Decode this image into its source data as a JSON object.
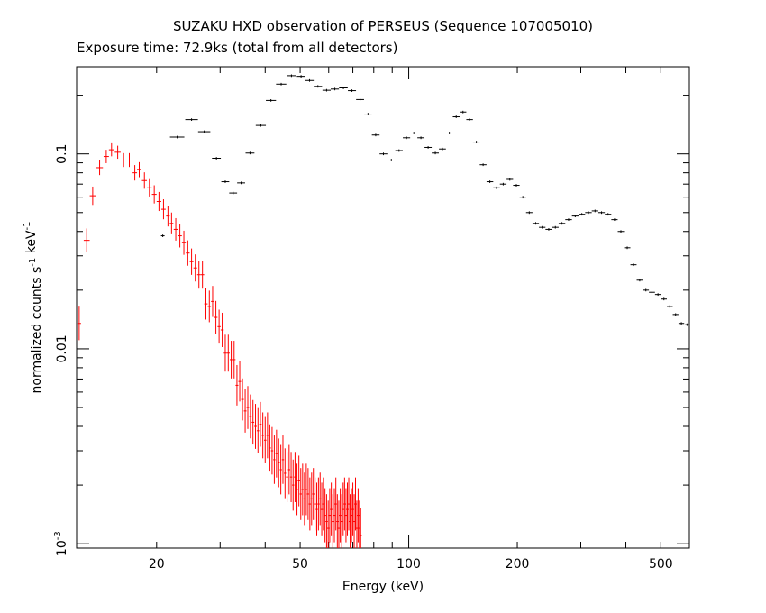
{
  "chart_data": {
    "type": "scatter",
    "title": "SUZAKU HXD observation of PERSEUS (Sequence 107005010)",
    "subtitle": "Exposure time: 72.9ks (total from all detectors)",
    "xlabel": "Energy (keV)",
    "ylabel": "normalized counts s-1 keV-1",
    "xscale": "log",
    "yscale": "log",
    "xlim": [
      12,
      600
    ],
    "ylim": [
      0.00095,
      0.28
    ],
    "x_ticks": [
      {
        "value": 20,
        "label": "20"
      },
      {
        "value": 50,
        "label": "50"
      },
      {
        "value": 100,
        "label": "100"
      },
      {
        "value": 200,
        "label": "200"
      },
      {
        "value": 500,
        "label": "500"
      }
    ],
    "y_ticks": [
      {
        "value": 0.001,
        "label": "10-3"
      },
      {
        "value": 0.01,
        "label": "0.01"
      },
      {
        "value": 0.1,
        "label": "0.1"
      }
    ],
    "grid": false,
    "series": [
      {
        "color": "#ff0000",
        "points": [
          [
            12.2,
            0.0135
          ],
          [
            12.8,
            0.036
          ],
          [
            13.3,
            0.061
          ],
          [
            13.9,
            0.085
          ],
          [
            14.5,
            0.097
          ],
          [
            15.0,
            0.105
          ],
          [
            15.6,
            0.102
          ],
          [
            16.2,
            0.093
          ],
          [
            16.8,
            0.093
          ],
          [
            17.4,
            0.08
          ],
          [
            17.9,
            0.083
          ],
          [
            18.5,
            0.073
          ],
          [
            19.1,
            0.067
          ],
          [
            19.7,
            0.062
          ],
          [
            20.3,
            0.057
          ],
          [
            20.9,
            0.052
          ],
          [
            21.5,
            0.048
          ],
          [
            22.0,
            0.044
          ],
          [
            22.6,
            0.041
          ],
          [
            23.2,
            0.038
          ],
          [
            23.8,
            0.035
          ],
          [
            24.4,
            0.031
          ],
          [
            25.0,
            0.028
          ],
          [
            25.6,
            0.026
          ],
          [
            26.2,
            0.024
          ],
          [
            26.8,
            0.024
          ],
          [
            27.4,
            0.017
          ],
          [
            28.0,
            0.0165
          ],
          [
            28.6,
            0.0175
          ],
          [
            29.2,
            0.0145
          ],
          [
            29.8,
            0.013
          ],
          [
            30.4,
            0.0125
          ],
          [
            31.0,
            0.0095
          ],
          [
            31.6,
            0.0095
          ],
          [
            32.2,
            0.0088
          ],
          [
            32.8,
            0.0088
          ],
          [
            33.4,
            0.0065
          ],
          [
            34.0,
            0.0068
          ],
          [
            34.6,
            0.0055
          ],
          [
            35.2,
            0.0048
          ],
          [
            35.8,
            0.005
          ],
          [
            36.4,
            0.0045
          ],
          [
            37.0,
            0.0042
          ],
          [
            37.6,
            0.004
          ],
          [
            38.2,
            0.0038
          ],
          [
            38.8,
            0.0041
          ],
          [
            39.4,
            0.0036
          ],
          [
            40.0,
            0.0034
          ],
          [
            40.6,
            0.0036
          ],
          [
            41.2,
            0.0031
          ],
          [
            41.8,
            0.003
          ],
          [
            42.4,
            0.0027
          ],
          [
            43.0,
            0.0029
          ],
          [
            43.6,
            0.0026
          ],
          [
            44.2,
            0.0024
          ],
          [
            44.8,
            0.0027
          ],
          [
            45.4,
            0.0023
          ],
          [
            46.0,
            0.0022
          ],
          [
            46.6,
            0.0024
          ],
          [
            47.2,
            0.0022
          ],
          [
            47.8,
            0.002
          ],
          [
            48.4,
            0.0022
          ],
          [
            49.0,
            0.0019
          ],
          [
            49.6,
            0.0021
          ],
          [
            50.2,
            0.0018
          ],
          [
            50.8,
            0.0019
          ],
          [
            51.4,
            0.0017
          ],
          [
            52.0,
            0.0019
          ],
          [
            52.6,
            0.0018
          ],
          [
            53.2,
            0.0016
          ],
          [
            53.8,
            0.0017
          ],
          [
            54.4,
            0.0018
          ],
          [
            55.0,
            0.0016
          ],
          [
            55.6,
            0.0015
          ],
          [
            56.2,
            0.0016
          ],
          [
            56.8,
            0.0017
          ],
          [
            57.4,
            0.0015
          ],
          [
            58.0,
            0.0016
          ],
          [
            58.6,
            0.0014
          ],
          [
            59.2,
            0.0013
          ],
          [
            59.8,
            0.0012
          ],
          [
            60.4,
            0.0014
          ],
          [
            61.0,
            0.0015
          ],
          [
            61.6,
            0.0013
          ],
          [
            62.2,
            0.0014
          ],
          [
            62.8,
            0.0016
          ],
          [
            63.4,
            0.0013
          ],
          [
            64.0,
            0.0012
          ],
          [
            64.6,
            0.0014
          ],
          [
            65.2,
            0.0013
          ],
          [
            65.8,
            0.0015
          ],
          [
            66.4,
            0.0016
          ],
          [
            67.0,
            0.0014
          ],
          [
            67.6,
            0.0015
          ],
          [
            68.2,
            0.0016
          ],
          [
            68.8,
            0.0013
          ],
          [
            69.4,
            0.0014
          ],
          [
            70.0,
            0.0015
          ],
          [
            70.6,
            0.0013
          ],
          [
            71.2,
            0.0016
          ],
          [
            71.8,
            0.0012
          ],
          [
            72.4,
            0.0014
          ],
          [
            73.0,
            0.0012
          ],
          [
            73.6,
            0.0011
          ]
        ]
      },
      {
        "color": "#000000",
        "points": [
          [
            20.8,
            0.038
          ],
          [
            22.8,
            0.122
          ],
          [
            25.0,
            0.15
          ],
          [
            27.1,
            0.13
          ],
          [
            29.3,
            0.095
          ],
          [
            31.0,
            0.072
          ],
          [
            32.6,
            0.063
          ],
          [
            34.3,
            0.071
          ],
          [
            36.3,
            0.101
          ],
          [
            38.9,
            0.14
          ],
          [
            41.5,
            0.188
          ],
          [
            44.3,
            0.228
          ],
          [
            47.3,
            0.252
          ],
          [
            50.3,
            0.25
          ],
          [
            53.1,
            0.238
          ],
          [
            56.0,
            0.222
          ],
          [
            59.2,
            0.212
          ],
          [
            62.4,
            0.215
          ],
          [
            65.9,
            0.218
          ],
          [
            69.6,
            0.211
          ],
          [
            73.3,
            0.19
          ],
          [
            77.1,
            0.16
          ],
          [
            81.0,
            0.125
          ],
          [
            85.1,
            0.1
          ],
          [
            89.5,
            0.093
          ],
          [
            94.0,
            0.104
          ],
          [
            98.6,
            0.121
          ],
          [
            103.3,
            0.128
          ],
          [
            108.1,
            0.121
          ],
          [
            113.2,
            0.108
          ],
          [
            118.5,
            0.101
          ],
          [
            124.0,
            0.106
          ],
          [
            129.6,
            0.128
          ],
          [
            135.4,
            0.155
          ],
          [
            141.4,
            0.164
          ],
          [
            147.5,
            0.15
          ],
          [
            154.0,
            0.115
          ],
          [
            160.8,
            0.088
          ],
          [
            167.9,
            0.072
          ],
          [
            175.2,
            0.067
          ],
          [
            182.8,
            0.07
          ],
          [
            190.7,
            0.074
          ],
          [
            198.8,
            0.069
          ],
          [
            207.2,
            0.06
          ],
          [
            215.9,
            0.05
          ],
          [
            225.0,
            0.044
          ],
          [
            234.5,
            0.042
          ],
          [
            244.5,
            0.041
          ],
          [
            255.0,
            0.042
          ],
          [
            266.0,
            0.044
          ],
          [
            277.5,
            0.046
          ],
          [
            289.5,
            0.048
          ],
          [
            302.0,
            0.049
          ],
          [
            315.0,
            0.05
          ],
          [
            328.5,
            0.051
          ],
          [
            342.5,
            0.05
          ],
          [
            357.0,
            0.049
          ],
          [
            372.0,
            0.046
          ],
          [
            387.5,
            0.04
          ],
          [
            403.5,
            0.033
          ],
          [
            420.0,
            0.027
          ],
          [
            437.0,
            0.0225
          ],
          [
            454.5,
            0.02
          ],
          [
            472.5,
            0.0195
          ],
          [
            491.0,
            0.019
          ],
          [
            510.0,
            0.018
          ],
          [
            529.5,
            0.0165
          ],
          [
            549.5,
            0.015
          ],
          [
            570.0,
            0.0135
          ],
          [
            591.0,
            0.0133
          ]
        ]
      }
    ]
  }
}
